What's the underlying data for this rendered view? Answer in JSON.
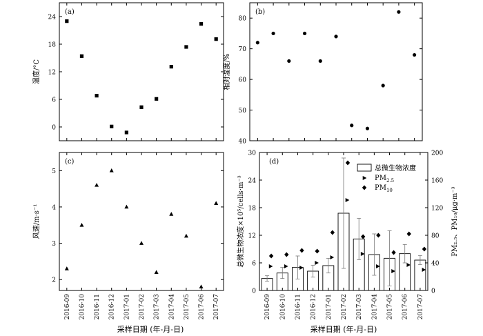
{
  "x_title": "采样日期 (年-月-日)",
  "chart_data": [
    {
      "panel": "a",
      "panel_label": "(a)",
      "type": "scatter",
      "marker": "square",
      "x": [
        "2016-09",
        "2016-10",
        "2016-11",
        "2016-12",
        "2017-01",
        "2017-02",
        "2017-03",
        "2017-04",
        "2017-05",
        "2017-06",
        "2017-07"
      ],
      "values": [
        23,
        15.4,
        6.8,
        0.1,
        -1.2,
        4.3,
        6.1,
        13.1,
        17.4,
        22.4,
        19.1
      ],
      "ylabel": "温度/°C",
      "ylim": [
        -3,
        27
      ],
      "yticks": [
        0,
        6,
        12,
        18,
        24
      ]
    },
    {
      "panel": "b",
      "panel_label": "(b)",
      "type": "scatter",
      "marker": "circle",
      "x": [
        "2016-09",
        "2016-10",
        "2016-11",
        "2016-12",
        "2017-01",
        "2017-02",
        "2017-03",
        "2017-04",
        "2017-05",
        "2017-06",
        "2017-07"
      ],
      "values": [
        72,
        75,
        66,
        75,
        66,
        74,
        45,
        44,
        58,
        82,
        68
      ],
      "ylabel": "相对湿度/%",
      "ylim": [
        40,
        85
      ],
      "yticks": [
        40,
        50,
        60,
        70,
        80
      ]
    },
    {
      "panel": "c",
      "panel_label": "(c)",
      "type": "scatter",
      "marker": "triangle",
      "x": [
        "2016-09",
        "2016-10",
        "2016-11",
        "2016-12",
        "2017-01",
        "2017-02",
        "2017-03",
        "2017-04",
        "2017-05",
        "2017-06",
        "2017-07"
      ],
      "values": [
        2.3,
        3.5,
        4.6,
        5.0,
        4.0,
        3.0,
        2.2,
        3.8,
        3.2,
        1.8,
        4.1
      ],
      "ylabel": "风速/m·s⁻¹",
      "ylim": [
        1.7,
        5.5
      ],
      "yticks": [
        2,
        3,
        4,
        5
      ]
    },
    {
      "panel": "d",
      "panel_label": "(d)",
      "type": "bar",
      "categories": [
        "2016-09",
        "2016-10",
        "2016-11",
        "2016-12",
        "2017-01",
        "2017-02",
        "2017-03",
        "2017-04",
        "2017-05",
        "2017-06",
        "2017-07"
      ],
      "bars": {
        "legend": "总微生物浓度",
        "values": [
          2.6,
          3.8,
          5.0,
          4.2,
          5.4,
          16.8,
          11.2,
          7.8,
          7.0,
          8.0,
          6.6
        ],
        "errors": [
          0.6,
          1.2,
          2.5,
          1.3,
          1.6,
          12.0,
          4.5,
          4.5,
          6.0,
          2.0,
          1.0
        ]
      },
      "series": [
        {
          "legend_base": "PM",
          "legend_sub": "2.5",
          "marker": "triangle-right",
          "values": [
            35,
            35,
            33,
            40,
            48,
            131,
            53,
            35,
            28,
            37,
            30
          ]
        },
        {
          "legend_base": "PM",
          "legend_sub": "10",
          "marker": "diamond",
          "values": [
            50,
            52,
            58,
            57,
            84,
            185,
            78,
            80,
            55,
            82,
            60
          ]
        }
      ],
      "ylabel_left": "总微生物浓度×10⁵/cells·m⁻³",
      "ylim_left": [
        0,
        30
      ],
      "yticks_left": [
        0,
        6,
        12,
        18,
        24,
        30
      ],
      "ylabel_right": "PM₂.₅、PM₁₀/μg·m⁻³",
      "ylim_right": [
        0,
        200
      ],
      "yticks_right": [
        0,
        40,
        80,
        120,
        160,
        200
      ]
    }
  ]
}
